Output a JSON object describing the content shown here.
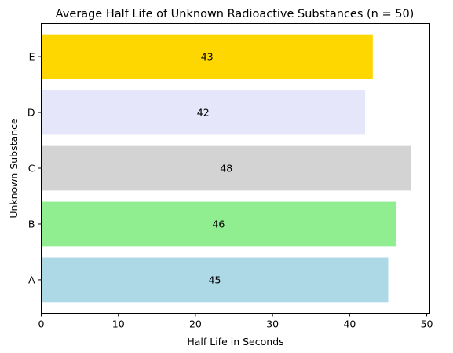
{
  "chart_data": {
    "type": "bar",
    "orientation": "horizontal",
    "title": "Average Half Life of Unknown Radioactive Substances (n = 50)",
    "xlabel": "Half Life in Seconds",
    "ylabel": "Unknown Substance",
    "categories": [
      "A",
      "B",
      "C",
      "D",
      "E"
    ],
    "values": [
      45,
      46,
      48,
      42,
      43
    ],
    "data_labels": [
      "45",
      "46",
      "48",
      "42",
      "43"
    ],
    "colors": [
      "#add8e6",
      "#90ee90",
      "#d3d3d3",
      "#e6e6fa",
      "#ffd700"
    ],
    "xlim": [
      0,
      50.4
    ],
    "xticks": [
      0,
      10,
      20,
      30,
      40,
      50
    ],
    "xtick_labels": [
      "0",
      "10",
      "20",
      "30",
      "40",
      "50"
    ],
    "grid": false,
    "legend": "none"
  }
}
